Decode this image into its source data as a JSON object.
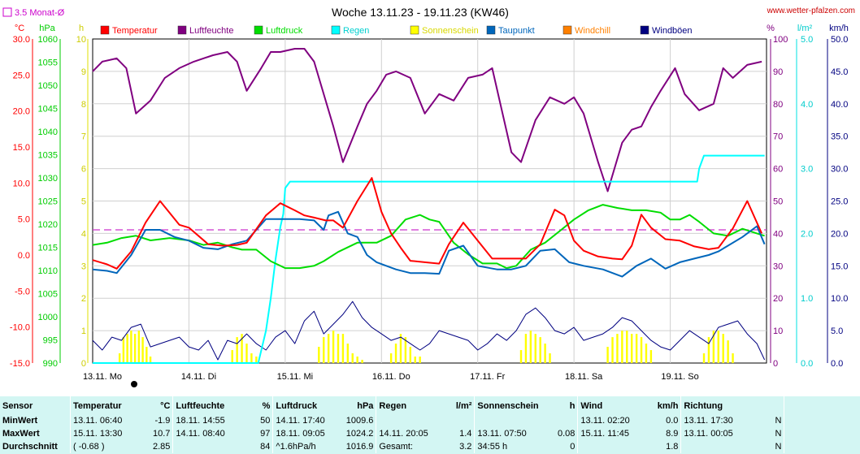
{
  "chart_data": {
    "type": "line",
    "title": "Woche 13.11.23 - 19.11.23 (KW46)",
    "source_label": "www.wetter-pfalzen.com",
    "month_avg_label": "3.5 Monat-Ø",
    "x_categories": [
      "13.11. Mo",
      "14.11. Di",
      "15.11. Mi",
      "16.11. Do",
      "17.11. Fr",
      "18.11. Sa",
      "19.11. So"
    ],
    "axes": {
      "temp": {
        "unit": "°C",
        "color": "#ff0000",
        "ylim": [
          -15,
          30
        ],
        "ticks": [
          "30.0",
          "25.0",
          "20.0",
          "15.0",
          "10.0",
          "5.0",
          "0.0",
          "-5.0",
          "-10.0",
          "-15.0"
        ]
      },
      "pressure": {
        "unit": "hPa",
        "color": "#00cc00",
        "ylim": [
          990,
          1060
        ],
        "ticks": [
          "1060",
          "1055",
          "1050",
          "1045",
          "1040",
          "1035",
          "1030",
          "1025",
          "1020",
          "1015",
          "1010",
          "1005",
          "1000",
          "995",
          "990"
        ]
      },
      "sun": {
        "unit": "h",
        "color": "#e0e000",
        "ylim": [
          0,
          10
        ],
        "ticks": [
          "10",
          "9",
          "8",
          "7",
          "6",
          "5",
          "4",
          "3",
          "2",
          "1",
          "0"
        ]
      },
      "humidity": {
        "unit": "%",
        "color": "#800080",
        "ylim": [
          0,
          100
        ],
        "ticks": [
          "100",
          "90",
          "80",
          "70",
          "60",
          "50",
          "40",
          "30",
          "20",
          "10",
          "0"
        ]
      },
      "rain": {
        "unit": "l/m²",
        "color": "#00e0e0",
        "ylim": [
          0,
          5
        ],
        "ticks": [
          "5.0",
          "4.0",
          "3.0",
          "2.0",
          "1.0",
          "0.0"
        ]
      },
      "wind": {
        "unit": "km/h",
        "color": "#000080",
        "ylim": [
          0,
          50
        ],
        "ticks": [
          "50.0",
          "45.0",
          "40.0",
          "35.0",
          "30.0",
          "25.0",
          "20.0",
          "15.0",
          "10.0",
          "5.0",
          "0.0"
        ]
      }
    },
    "legend": [
      {
        "name": "Temperatur",
        "color": "#ff0000"
      },
      {
        "name": "Luftfeuchte",
        "color": "#800080"
      },
      {
        "name": "Luftdruck",
        "color": "#00dd00"
      },
      {
        "name": "Regen",
        "color": "#00ffff"
      },
      {
        "name": "Sonnenschein",
        "color": "#ffff00"
      },
      {
        "name": "Taupunkt",
        "color": "#0066bb"
      },
      {
        "name": "Windchill",
        "color": "#ff8000"
      },
      {
        "name": "Windböen",
        "color": "#000080"
      }
    ],
    "series": [
      {
        "name": "Temperatur",
        "axis": "temp",
        "color": "#ff0000",
        "x": [
          0,
          0.15,
          0.25,
          0.4,
          0.55,
          0.7,
          0.9,
          1.0,
          1.2,
          1.35,
          1.5,
          1.6,
          1.8,
          1.95,
          2.1,
          2.2,
          2.3,
          2.42,
          2.5,
          2.6,
          2.75,
          2.9,
          3.0,
          3.1,
          3.2,
          3.3,
          3.45,
          3.6,
          3.7,
          3.85,
          4.0,
          4.15,
          4.3,
          4.4,
          4.5,
          4.65,
          4.8,
          4.9,
          5.0,
          5.1,
          5.25,
          5.4,
          5.5,
          5.6,
          5.7,
          5.8,
          5.95,
          6.1,
          6.25,
          6.4,
          6.5,
          6.65,
          6.8,
          6.95
        ],
        "y": [
          -0.7,
          -1.3,
          -1.9,
          0.5,
          4.5,
          7.5,
          4.2,
          3.8,
          1.5,
          1.3,
          1.4,
          1.7,
          5.5,
          7.2,
          6.2,
          5.5,
          5.2,
          4.8,
          4.8,
          3.8,
          7.5,
          10.7,
          6.0,
          3.0,
          1.0,
          -0.8,
          -1.0,
          -1.2,
          1.5,
          4.5,
          2.0,
          -0.5,
          -0.5,
          -0.5,
          -0.5,
          1.5,
          6.3,
          5.5,
          2.0,
          0.6,
          -0.2,
          -0.5,
          -0.6,
          1.3,
          5.6,
          3.8,
          2.2,
          2.0,
          1.2,
          0.8,
          1.0,
          3.7,
          7.5,
          3.0
        ]
      },
      {
        "name": "Luftfeuchte",
        "axis": "humidity",
        "color": "#800080",
        "x": [
          0,
          0.1,
          0.25,
          0.35,
          0.45,
          0.6,
          0.75,
          0.9,
          1.05,
          1.15,
          1.25,
          1.4,
          1.5,
          1.6,
          1.75,
          1.85,
          1.95,
          2.1,
          2.2,
          2.3,
          2.5,
          2.6,
          2.75,
          2.85,
          2.95,
          3.05,
          3.15,
          3.3,
          3.45,
          3.55,
          3.6,
          3.75,
          3.9,
          4.05,
          4.15,
          4.35,
          4.45,
          4.6,
          4.75,
          4.9,
          5.0,
          5.1,
          5.25,
          5.35,
          5.5,
          5.6,
          5.7,
          5.8,
          5.9,
          6.05,
          6.15,
          6.3,
          6.45,
          6.55,
          6.65,
          6.8,
          6.95
        ],
        "y": [
          90,
          93,
          94,
          91,
          77,
          81,
          88,
          91,
          93,
          94,
          95,
          96,
          93,
          84,
          91,
          96,
          96,
          97,
          97,
          93,
          73,
          62,
          73,
          80,
          84,
          89,
          90,
          88,
          77,
          81,
          83,
          81,
          88,
          89,
          91,
          65,
          62,
          75,
          82,
          80,
          82,
          77,
          62,
          53,
          68,
          72,
          73,
          79,
          84,
          91,
          83,
          78,
          80,
          91,
          88,
          92,
          93
        ]
      },
      {
        "name": "Luftdruck",
        "axis": "pressure",
        "color": "#00dd00",
        "x": [
          0,
          0.15,
          0.3,
          0.45,
          0.6,
          0.8,
          1.0,
          1.15,
          1.3,
          1.45,
          1.55,
          1.7,
          1.85,
          2.0,
          2.15,
          2.3,
          2.4,
          2.55,
          2.75,
          2.95,
          3.1,
          3.25,
          3.4,
          3.5,
          3.6,
          3.75,
          3.9,
          4.05,
          4.2,
          4.3,
          4.4,
          4.55,
          4.7,
          4.85,
          5.0,
          5.15,
          5.3,
          5.45,
          5.6,
          5.75,
          5.9,
          6.0,
          6.1,
          6.2,
          6.3,
          6.45,
          6.6,
          6.75,
          6.9,
          6.98
        ],
        "y": [
          1015.5,
          1016,
          1017,
          1017.5,
          1016.5,
          1017,
          1016.5,
          1015.5,
          1016,
          1015,
          1014.5,
          1014.5,
          1012,
          1010.5,
          1010.5,
          1011,
          1012,
          1014,
          1016,
          1016,
          1017.5,
          1021,
          1022,
          1021,
          1020.5,
          1016,
          1013.5,
          1011.5,
          1011.5,
          1010.5,
          1011,
          1014.5,
          1016,
          1018.5,
          1021,
          1023,
          1024.2,
          1023.5,
          1023,
          1023,
          1022.5,
          1021,
          1021,
          1022,
          1020.5,
          1018,
          1017.5,
          1019,
          1018,
          1017.5
        ]
      },
      {
        "name": "Regen",
        "axis": "rain",
        "color": "#00ffff",
        "x": [
          0,
          1.72,
          1.8,
          1.85,
          1.9,
          1.95,
          1.98,
          2.0,
          2.05,
          2.2,
          3.0,
          4.0,
          5.0,
          6.0,
          6.28,
          6.3,
          6.35,
          6.5,
          6.98
        ],
        "y": [
          0,
          0,
          0.5,
          1.0,
          1.6,
          2.1,
          2.3,
          2.7,
          2.8,
          2.8,
          2.8,
          2.8,
          2.8,
          2.8,
          2.8,
          3.0,
          3.2,
          3.2,
          3.2
        ]
      },
      {
        "name": "Taupunkt",
        "axis": "temp",
        "color": "#0066bb",
        "x": [
          0,
          0.15,
          0.25,
          0.4,
          0.55,
          0.7,
          0.85,
          1.0,
          1.15,
          1.3,
          1.45,
          1.6,
          1.8,
          1.95,
          2.15,
          2.3,
          2.4,
          2.45,
          2.55,
          2.65,
          2.75,
          2.85,
          2.95,
          3.05,
          3.15,
          3.3,
          3.45,
          3.6,
          3.7,
          3.85,
          4.0,
          4.2,
          4.35,
          4.5,
          4.65,
          4.8,
          4.95,
          5.1,
          5.3,
          5.5,
          5.65,
          5.8,
          5.95,
          6.1,
          6.25,
          6.4,
          6.5,
          6.6,
          6.75,
          6.9,
          6.98
        ],
        "y": [
          -2,
          -2.2,
          -2.5,
          0,
          3.5,
          3.5,
          2.5,
          2.0,
          1.0,
          0.8,
          1.5,
          2.0,
          5.0,
          5.0,
          5.0,
          4.8,
          3.5,
          5.5,
          6.0,
          3.0,
          2.5,
          0.0,
          -1.0,
          -1.5,
          -2.0,
          -2.5,
          -2.5,
          -2.6,
          0.6,
          1.3,
          -1.5,
          -2.0,
          -2.0,
          -1.5,
          0.6,
          0.8,
          -1.0,
          -1.5,
          -2.0,
          -3.0,
          -1.5,
          -0.5,
          -1.9,
          -1.0,
          -0.5,
          0.0,
          0.5,
          1.3,
          2.5,
          4.0,
          1.5
        ]
      },
      {
        "name": "Windböen",
        "axis": "wind",
        "color": "#000080",
        "x": [
          0,
          0.1,
          0.2,
          0.3,
          0.4,
          0.5,
          0.6,
          0.7,
          0.8,
          0.9,
          1.0,
          1.1,
          1.2,
          1.3,
          1.4,
          1.5,
          1.6,
          1.7,
          1.8,
          1.9,
          2.0,
          2.1,
          2.2,
          2.3,
          2.4,
          2.5,
          2.6,
          2.7,
          2.8,
          2.9,
          3.0,
          3.1,
          3.2,
          3.3,
          3.4,
          3.5,
          3.6,
          3.7,
          3.8,
          3.9,
          4.0,
          4.1,
          4.2,
          4.3,
          4.4,
          4.5,
          4.6,
          4.7,
          4.8,
          4.9,
          5.0,
          5.1,
          5.2,
          5.3,
          5.4,
          5.5,
          5.6,
          5.7,
          5.8,
          5.9,
          6.0,
          6.1,
          6.2,
          6.3,
          6.4,
          6.5,
          6.6,
          6.7,
          6.8,
          6.9,
          6.98
        ],
        "y": [
          3.5,
          2.0,
          4.0,
          3.5,
          5.5,
          6.0,
          2.5,
          3.0,
          3.5,
          4.0,
          2.5,
          2.0,
          3.5,
          0.5,
          3.5,
          3.0,
          4.5,
          3.0,
          2.0,
          4.0,
          5.0,
          3.0,
          6.5,
          8.0,
          4.5,
          6.0,
          7.5,
          9.5,
          7.0,
          5.5,
          4.5,
          3.5,
          4.0,
          3.0,
          2.0,
          3.0,
          5.0,
          4.5,
          4.0,
          3.5,
          2.0,
          3.0,
          4.5,
          3.5,
          5.0,
          7.5,
          8.5,
          7.0,
          5.0,
          4.5,
          5.5,
          3.5,
          4.0,
          4.5,
          5.5,
          7.0,
          6.5,
          5.0,
          3.5,
          2.5,
          2.0,
          3.5,
          5.0,
          4.0,
          3.0,
          5.5,
          6.0,
          6.5,
          4.5,
          3.0,
          0.5
        ]
      }
    ],
    "sunshine_bars": {
      "axis": "sun",
      "color": "#ffff00",
      "x": [
        0.28,
        0.32,
        0.36,
        0.4,
        0.44,
        0.48,
        0.52,
        0.56,
        0.6,
        1.45,
        1.5,
        1.55,
        1.6,
        1.65,
        1.7,
        2.35,
        2.4,
        2.45,
        2.5,
        2.55,
        2.6,
        2.65,
        2.7,
        2.75,
        2.8,
        3.1,
        3.15,
        3.2,
        3.25,
        3.3,
        3.35,
        3.4,
        4.45,
        4.5,
        4.55,
        4.6,
        4.65,
        4.7,
        4.75,
        5.35,
        5.4,
        5.45,
        5.5,
        5.55,
        5.6,
        5.65,
        5.7,
        5.75,
        5.8,
        6.35,
        6.4,
        6.45,
        6.5,
        6.55,
        6.6,
        6.65
      ],
      "y": [
        0.3,
        0.8,
        0.9,
        1.0,
        0.9,
        1.0,
        0.8,
        0.5,
        0.2,
        0.4,
        0.8,
        0.9,
        0.6,
        0.3,
        0.2,
        0.5,
        0.8,
        0.9,
        1.0,
        0.9,
        0.9,
        0.6,
        0.3,
        0.2,
        0.1,
        0.3,
        0.6,
        0.9,
        0.8,
        0.5,
        0.2,
        0.2,
        0.4,
        0.9,
        1.0,
        0.9,
        0.8,
        0.6,
        0.3,
        0.5,
        0.8,
        0.9,
        1.0,
        1.0,
        0.9,
        0.9,
        0.8,
        0.6,
        0.4,
        0.3,
        0.8,
        1.0,
        1.0,
        0.9,
        0.7,
        0.3
      ]
    },
    "month_avg_temp": 3.5,
    "grid": true
  },
  "stats": {
    "headers": [
      {
        "label": "Sensor",
        "unit": ""
      },
      {
        "label": "Temperatur",
        "unit": "°C"
      },
      {
        "label": "Luftfeuchte",
        "unit": "%"
      },
      {
        "label": "Luftdruck",
        "unit": "hPa"
      },
      {
        "label": "Regen",
        "unit": "l/m²"
      },
      {
        "label": "Sonnenschein",
        "unit": "h"
      },
      {
        "label": "Wind",
        "unit": "km/h"
      },
      {
        "label": "Richtung",
        "unit": ""
      }
    ],
    "rows": [
      {
        "label": "MinWert",
        "cells": [
          [
            "13.11.  06:40",
            "-1.9"
          ],
          [
            "18.11.  14:55",
            "50"
          ],
          [
            "14.11.  17:40",
            "1009.6"
          ],
          [
            "",
            ""
          ],
          [
            "",
            ""
          ],
          [
            "13.11.  02:20",
            "0.0"
          ],
          [
            "13.11.  17:30",
            "N"
          ]
        ]
      },
      {
        "label": "MaxWert",
        "cells": [
          [
            "15.11.  13:30",
            "10.7"
          ],
          [
            "14.11.  08:40",
            "97"
          ],
          [
            "18.11.  09:05",
            "1024.2"
          ],
          [
            "14.11.  20:05",
            "1.4"
          ],
          [
            "13.11.  07:50",
            "0.08"
          ],
          [
            "15.11.  11:45",
            "8.9"
          ],
          [
            "13.11.  00:05",
            "N"
          ]
        ]
      },
      {
        "label": "Durchschnitt",
        "cells": [
          [
            "( -0.68 )",
            "2.85"
          ],
          [
            "",
            "84"
          ],
          [
            "^1.6hPa/h",
            "1016.9"
          ],
          [
            "Gesamt:",
            "3.2"
          ],
          [
            "34:55 h",
            "0"
          ],
          [
            "",
            "1.8"
          ],
          [
            "",
            "N"
          ]
        ]
      }
    ]
  }
}
